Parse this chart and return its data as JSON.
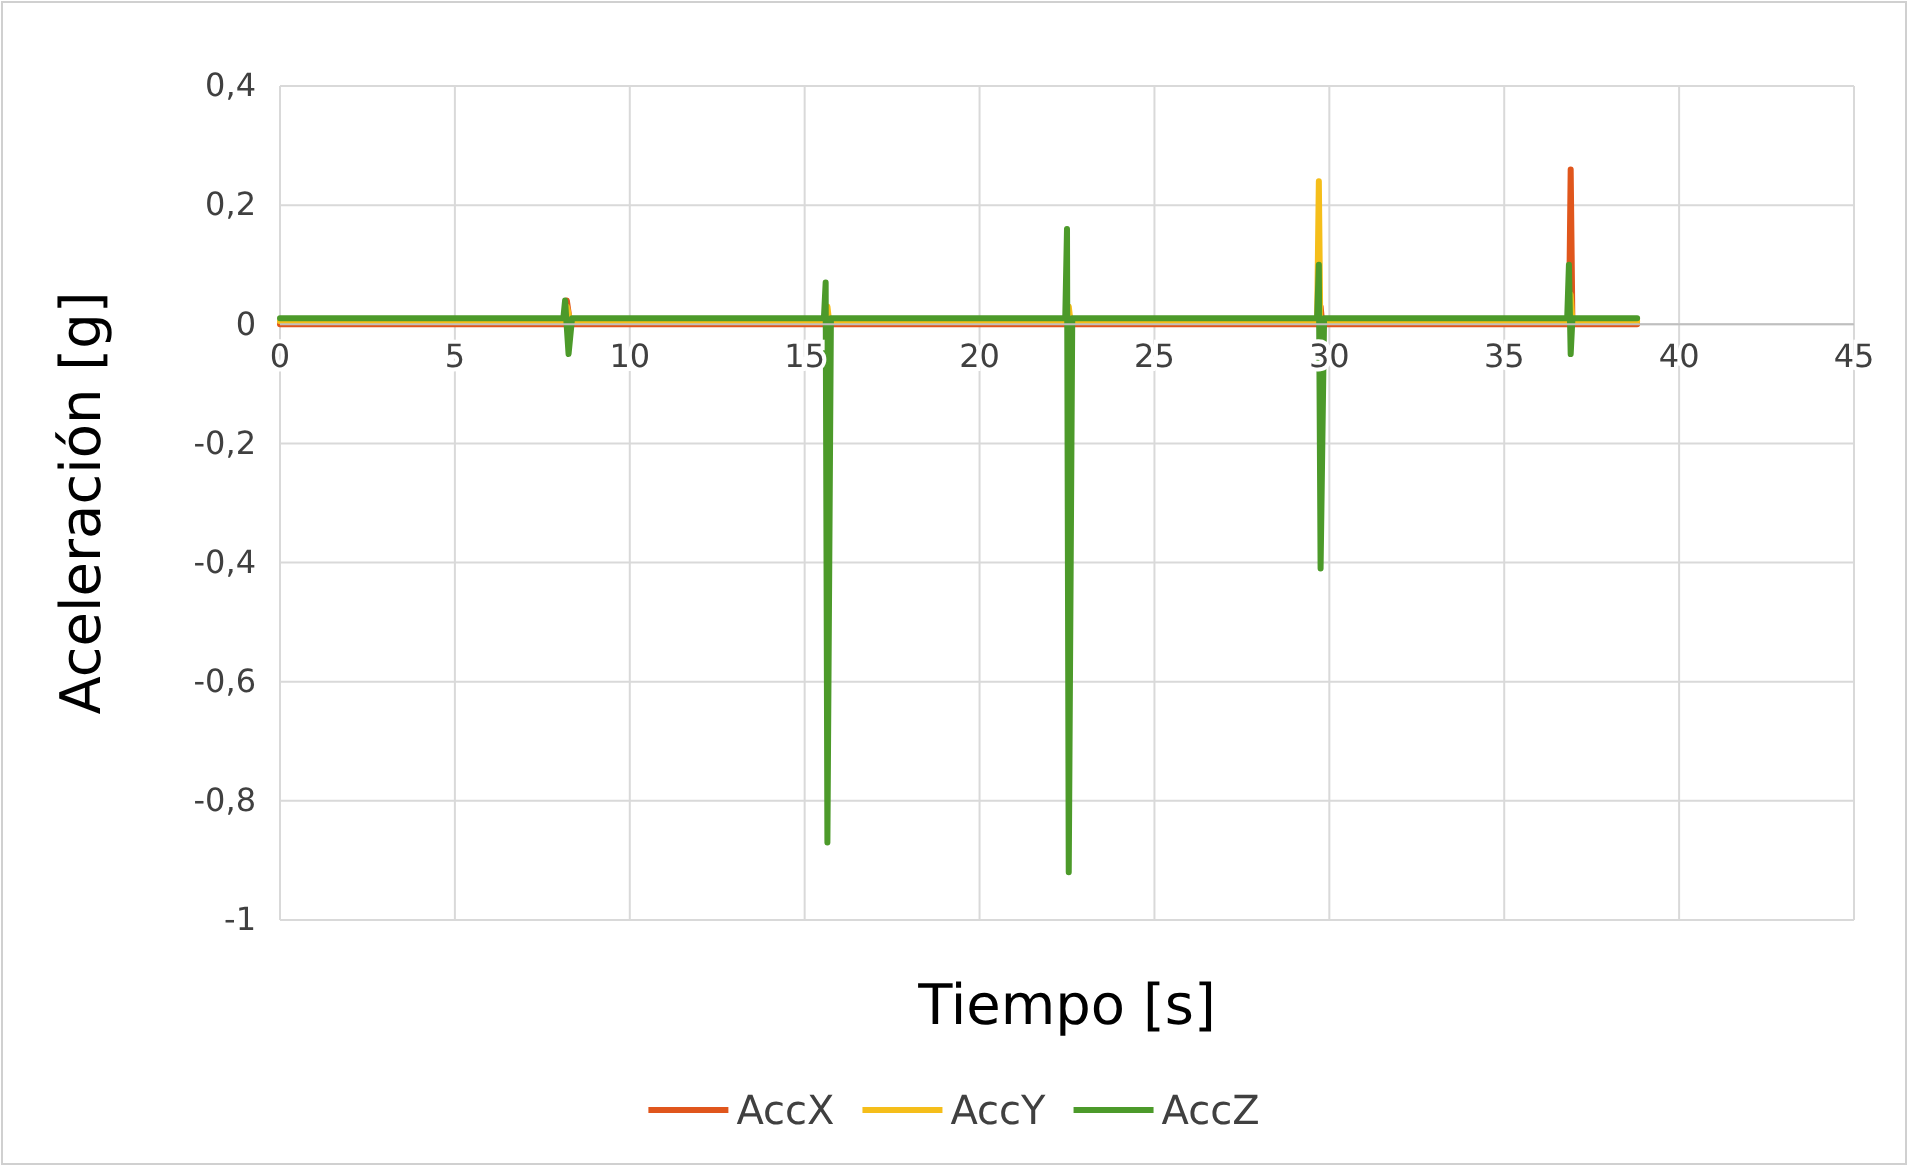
{
  "chart_data": {
    "type": "line",
    "xlabel": "Tiempo [s]",
    "ylabel": "Aceleración [g]",
    "xlim": [
      0,
      45
    ],
    "xticks": [
      0,
      5,
      10,
      15,
      20,
      25,
      30,
      35,
      40,
      45
    ],
    "ylim": [
      -1,
      0.4
    ],
    "yticks": [
      {
        "value": 0.4,
        "label": "0,4"
      },
      {
        "value": 0.2,
        "label": "0,2"
      },
      0,
      {
        "value": -0.2,
        "label": "-0,2"
      },
      {
        "value": -0.4,
        "label": "-0,4"
      },
      {
        "value": -0.6,
        "label": "-0,6"
      },
      {
        "value": -0.8,
        "label": "-0,8"
      },
      -1
    ],
    "grid": true,
    "legend": "bottom",
    "marker": "none",
    "line_style": "solid",
    "series": [
      {
        "name": "AccX",
        "color": "#e0561c",
        "x": [
          0,
          8.15,
          8.2,
          8.3,
          15.6,
          15.65,
          15.7,
          22.5,
          22.55,
          22.6,
          29.7,
          29.75,
          29.8,
          36.85,
          36.9,
          36.95,
          38.8
        ],
        "values": [
          0,
          0,
          0.04,
          0,
          0,
          0.02,
          0,
          0,
          0.02,
          0,
          0,
          0.03,
          0,
          0,
          0.26,
          0,
          0
        ]
      },
      {
        "name": "AccY",
        "color": "#f5be1a",
        "x": [
          0,
          8.15,
          8.2,
          8.3,
          15.6,
          15.65,
          15.7,
          22.5,
          22.55,
          22.6,
          29.65,
          29.7,
          29.75,
          29.8,
          36.85,
          36.9,
          36.95,
          38.8
        ],
        "values": [
          0.005,
          0.005,
          0.03,
          0.005,
          0.005,
          0.03,
          0.005,
          0.005,
          0.03,
          0.005,
          0.005,
          0.24,
          -0.05,
          0.005,
          0.005,
          0.05,
          0.005,
          0.005
        ]
      },
      {
        "name": "AccZ",
        "color": "#4c9a2a",
        "x": [
          0,
          8.1,
          8.15,
          8.25,
          8.35,
          15.55,
          15.6,
          15.65,
          15.75,
          22.45,
          22.5,
          22.55,
          22.65,
          29.65,
          29.7,
          29.75,
          29.85,
          36.8,
          36.85,
          36.9,
          36.95,
          38.8
        ],
        "values": [
          0.01,
          0.01,
          0.04,
          -0.05,
          0.01,
          0.01,
          0.07,
          -0.87,
          0.01,
          0.01,
          0.16,
          -0.92,
          0.01,
          0.01,
          0.1,
          -0.41,
          0.01,
          0.01,
          0.1,
          -0.05,
          0.01,
          0.01
        ]
      }
    ]
  }
}
